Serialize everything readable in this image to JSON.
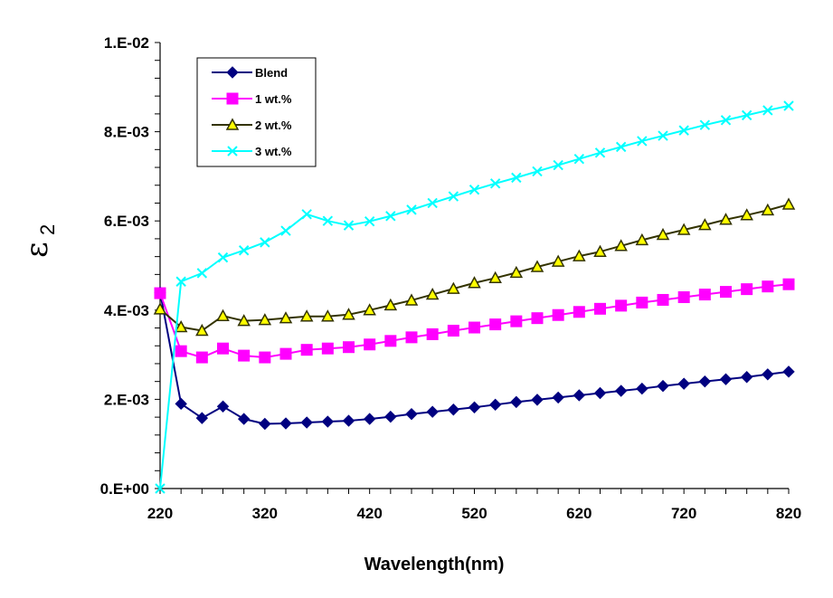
{
  "chart_data": {
    "type": "line",
    "title": "",
    "xlabel": "Wavelength(nm)",
    "ylabel": "ε",
    "ylabel_subscript": "2",
    "xlim": [
      220,
      820
    ],
    "ylim": [
      0,
      0.01
    ],
    "x_ticks": [
      220,
      320,
      420,
      520,
      620,
      720,
      820
    ],
    "x_tick_labels": [
      "220",
      "320",
      "420",
      "520",
      "620",
      "720",
      "820"
    ],
    "x_minor_step": 20,
    "y_ticks": [
      0,
      0.002,
      0.004,
      0.006,
      0.008,
      0.01
    ],
    "y_tick_labels": [
      "0.E+00",
      "2.E-03",
      "4.E-03",
      "6.E-03",
      "8.E-03",
      "1.E-02"
    ],
    "y_minor_step": 0.0004,
    "grid": false,
    "legend_position": "top-left",
    "x": [
      220,
      240,
      260,
      280,
      300,
      320,
      340,
      360,
      380,
      400,
      420,
      440,
      460,
      480,
      500,
      520,
      540,
      560,
      580,
      600,
      620,
      640,
      660,
      680,
      700,
      720,
      740,
      760,
      780,
      800,
      820
    ],
    "series": [
      {
        "name": "Blend",
        "color": "#000080",
        "marker": "diamond",
        "marker_fill": "#000080",
        "values": [
          0.0044,
          0.0019,
          0.00158,
          0.00184,
          0.00156,
          0.00145,
          0.00146,
          0.00148,
          0.0015,
          0.00152,
          0.00156,
          0.00161,
          0.00167,
          0.00172,
          0.00177,
          0.00182,
          0.00188,
          0.00194,
          0.00199,
          0.00204,
          0.00209,
          0.00214,
          0.00219,
          0.00224,
          0.0023,
          0.00235,
          0.0024,
          0.00245,
          0.0025,
          0.00256,
          0.00262
        ]
      },
      {
        "name": "1 wt.%",
        "color": "#FF00FF",
        "marker": "square",
        "marker_fill": "#FF00FF",
        "values": [
          0.00438,
          0.00308,
          0.00294,
          0.00314,
          0.00298,
          0.00294,
          0.00302,
          0.00311,
          0.00314,
          0.00317,
          0.00323,
          0.00331,
          0.00339,
          0.00346,
          0.00354,
          0.00361,
          0.00368,
          0.00375,
          0.00382,
          0.00389,
          0.00396,
          0.00403,
          0.0041,
          0.00417,
          0.00423,
          0.00429,
          0.00435,
          0.00441,
          0.00447,
          0.00453,
          0.00458
        ]
      },
      {
        "name": "2 wt.%",
        "color": "#333300",
        "marker": "triangle",
        "marker_fill": "#FFFF00",
        "values": [
          0.00402,
          0.00362,
          0.00354,
          0.00387,
          0.00376,
          0.00378,
          0.00382,
          0.00386,
          0.00386,
          0.0039,
          0.004,
          0.00411,
          0.00422,
          0.00435,
          0.00448,
          0.00461,
          0.00472,
          0.00484,
          0.00497,
          0.00509,
          0.00521,
          0.00531,
          0.00544,
          0.00557,
          0.00569,
          0.0058,
          0.00591,
          0.00603,
          0.00613,
          0.00624,
          0.00637
        ]
      },
      {
        "name": "3 wt.%",
        "color": "#00FFFF",
        "marker": "x",
        "marker_fill": "none",
        "values": [
          0.0,
          0.00464,
          0.00483,
          0.00518,
          0.00534,
          0.00552,
          0.00578,
          0.00615,
          0.006,
          0.0059,
          0.00599,
          0.00611,
          0.00625,
          0.0064,
          0.00655,
          0.0067,
          0.00684,
          0.00697,
          0.00711,
          0.00725,
          0.00739,
          0.00753,
          0.00766,
          0.00779,
          0.00791,
          0.00803,
          0.00815,
          0.00826,
          0.00837,
          0.00848,
          0.00858
        ]
      }
    ]
  }
}
